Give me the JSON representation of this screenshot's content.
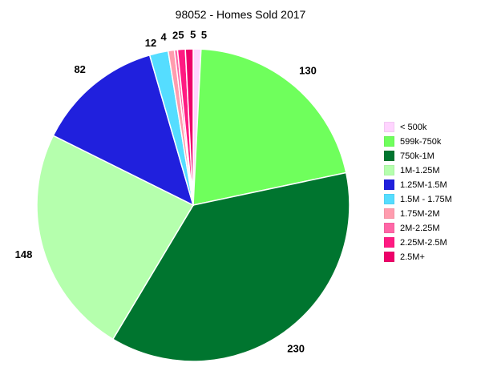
{
  "chart_data": {
    "type": "pie",
    "title": "98052 - Homes Sold 2017",
    "legend_position": "right",
    "slices": [
      {
        "name": "< 500k",
        "value": 5,
        "label": "5",
        "color": "#ffd4ff"
      },
      {
        "name": "599k-750k",
        "value": 130,
        "label": "130",
        "color": "#6fff5c"
      },
      {
        "name": "750k-1M",
        "value": 230,
        "label": "230",
        "color": "#00752f"
      },
      {
        "name": "1M-1.25M",
        "value": 148,
        "label": "148",
        "color": "#b5ffad"
      },
      {
        "name": "1.25M-1.5M",
        "value": 82,
        "label": "82",
        "color": "#2020dd"
      },
      {
        "name": "1.5M - 1.75M",
        "value": 12,
        "label": "12",
        "color": "#55ddff"
      },
      {
        "name": "1.75M-2M",
        "value": 4,
        "label": "4",
        "color": "#ff9cae"
      },
      {
        "name": "2M-2.25M",
        "value": 2,
        "label": "2",
        "color": "#ff66a6"
      },
      {
        "name": "2.25M-2.5M",
        "value": 5,
        "label": "5",
        "color": "#ff1a82"
      },
      {
        "name": "2.5M+",
        "value": 5,
        "label": "5",
        "color": "#ee006a"
      }
    ]
  }
}
